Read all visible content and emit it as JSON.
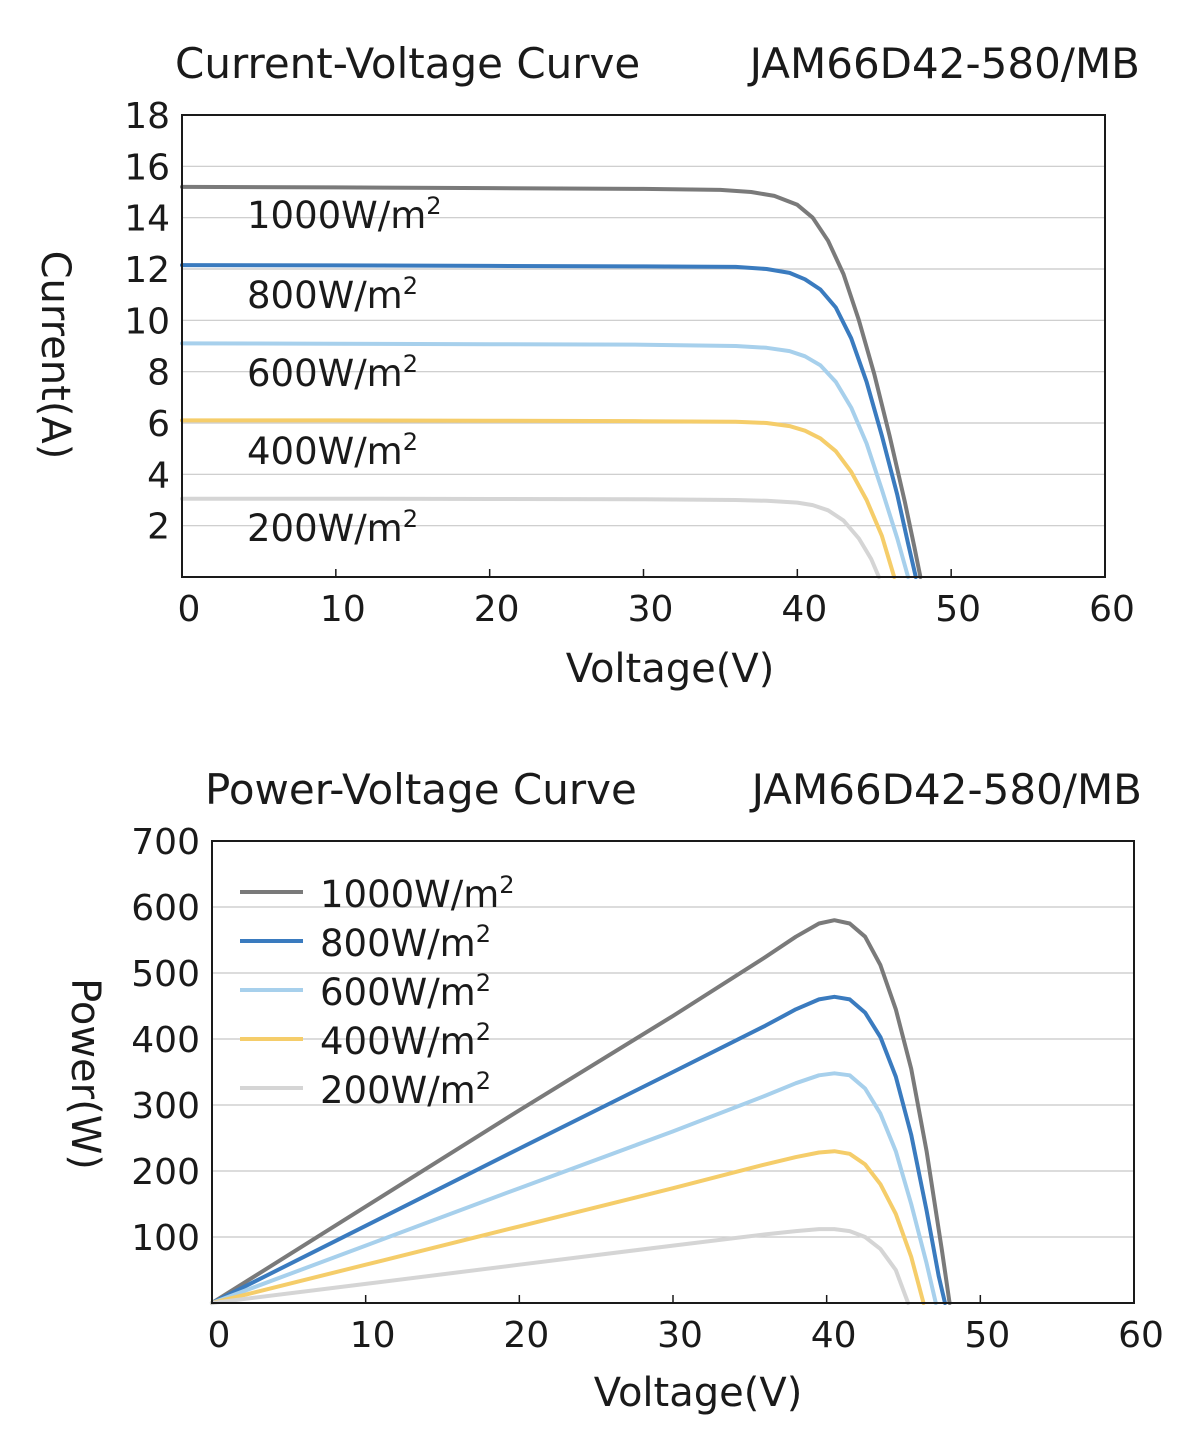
{
  "chart_data": [
    {
      "type": "line",
      "title": "Current-Voltage Curve",
      "model": "JAM66D42-580/MB",
      "xlabel": "Voltage(V)",
      "ylabel": "Current(A)",
      "xlim": [
        0,
        60
      ],
      "ylim": [
        0,
        18
      ],
      "x_ticks": [
        "0",
        "10",
        "20",
        "30",
        "40",
        "50",
        "60"
      ],
      "y_ticks": [
        "2",
        "4",
        "6",
        "8",
        "10",
        "12",
        "14",
        "16",
        "18"
      ],
      "grid": true,
      "legend": "inline-left",
      "series": [
        {
          "name": "1000W/m²",
          "label": "1000W/m",
          "sup": "2",
          "color": "#7a7a7a",
          "points": [
            [
              0,
              15.2
            ],
            [
              10,
              15.18
            ],
            [
              20,
              15.15
            ],
            [
              30,
              15.12
            ],
            [
              35,
              15.08
            ],
            [
              37,
              15.0
            ],
            [
              38.5,
              14.85
            ],
            [
              40,
              14.5
            ],
            [
              41,
              14.0
            ],
            [
              42,
              13.1
            ],
            [
              43,
              11.8
            ],
            [
              44,
              10.0
            ],
            [
              45,
              7.9
            ],
            [
              46,
              5.5
            ],
            [
              47,
              2.9
            ],
            [
              47.6,
              1.2
            ],
            [
              48,
              0
            ]
          ]
        },
        {
          "name": "800W/m²",
          "label": "800W/m",
          "sup": "2",
          "color": "#3a7bbf",
          "points": [
            [
              0,
              12.15
            ],
            [
              10,
              12.14
            ],
            [
              20,
              12.12
            ],
            [
              30,
              12.1
            ],
            [
              36,
              12.08
            ],
            [
              38,
              12.0
            ],
            [
              39.5,
              11.85
            ],
            [
              40.5,
              11.6
            ],
            [
              41.5,
              11.2
            ],
            [
              42.5,
              10.5
            ],
            [
              43.5,
              9.3
            ],
            [
              44.5,
              7.6
            ],
            [
              45.5,
              5.5
            ],
            [
              46.5,
              3.2
            ],
            [
              47.2,
              1.3
            ],
            [
              47.7,
              0
            ]
          ]
        },
        {
          "name": "600W/m²",
          "label": "600W/m",
          "sup": "2",
          "color": "#a7d0ec",
          "points": [
            [
              0,
              9.1
            ],
            [
              10,
              9.09
            ],
            [
              20,
              9.07
            ],
            [
              30,
              9.05
            ],
            [
              36,
              9.0
            ],
            [
              38,
              8.93
            ],
            [
              39.5,
              8.8
            ],
            [
              40.5,
              8.6
            ],
            [
              41.5,
              8.25
            ],
            [
              42.5,
              7.6
            ],
            [
              43.5,
              6.6
            ],
            [
              44.5,
              5.2
            ],
            [
              45.5,
              3.4
            ],
            [
              46.5,
              1.5
            ],
            [
              47.2,
              0
            ]
          ]
        },
        {
          "name": "400W/m²",
          "label": "400W/m",
          "sup": "2",
          "color": "#f5cd6a",
          "points": [
            [
              0,
              6.1
            ],
            [
              10,
              6.1
            ],
            [
              20,
              6.09
            ],
            [
              30,
              6.07
            ],
            [
              36,
              6.05
            ],
            [
              38,
              6.0
            ],
            [
              39.5,
              5.88
            ],
            [
              40.5,
              5.7
            ],
            [
              41.5,
              5.4
            ],
            [
              42.5,
              4.9
            ],
            [
              43.5,
              4.1
            ],
            [
              44.5,
              3.0
            ],
            [
              45.5,
              1.6
            ],
            [
              46.3,
              0
            ]
          ]
        },
        {
          "name": "200W/m²",
          "label": "200W/m",
          "sup": "2",
          "color": "#d5d5d5",
          "points": [
            [
              0,
              3.05
            ],
            [
              10,
              3.05
            ],
            [
              20,
              3.04
            ],
            [
              30,
              3.03
            ],
            [
              36,
              3.0
            ],
            [
              38,
              2.97
            ],
            [
              40,
              2.9
            ],
            [
              41,
              2.8
            ],
            [
              42,
              2.6
            ],
            [
              43,
              2.2
            ],
            [
              44,
              1.5
            ],
            [
              44.8,
              0.7
            ],
            [
              45.3,
              0
            ]
          ]
        }
      ]
    },
    {
      "type": "line",
      "title": "Power-Voltage Curve",
      "model": "JAM66D42-580/MB",
      "xlabel": "Voltage(V)",
      "ylabel": "Power(W)",
      "xlim": [
        0,
        60
      ],
      "ylim": [
        0,
        700
      ],
      "x_ticks": [
        "0",
        "10",
        "20",
        "30",
        "40",
        "50",
        "60"
      ],
      "y_ticks": [
        "100",
        "200",
        "300",
        "400",
        "500",
        "600",
        "700"
      ],
      "grid": true,
      "legend": "top-left",
      "series": [
        {
          "name": "1000W/m²",
          "label": "1000W/m",
          "sup": "2",
          "color": "#7a7a7a",
          "points": [
            [
              0,
              0
            ],
            [
              10,
              146
            ],
            [
              20,
              292
            ],
            [
              30,
              435
            ],
            [
              36,
              524
            ],
            [
              38,
              555
            ],
            [
              39.5,
              575
            ],
            [
              40.5,
              580
            ],
            [
              41.5,
              575
            ],
            [
              42.5,
              555
            ],
            [
              43.5,
              512
            ],
            [
              44.5,
              445
            ],
            [
              45.5,
              355
            ],
            [
              46.5,
              230
            ],
            [
              47.5,
              80
            ],
            [
              48,
              0
            ]
          ]
        },
        {
          "name": "800W/m²",
          "label": "800W/m",
          "sup": "2",
          "color": "#3a7bbf",
          "points": [
            [
              0,
              0
            ],
            [
              10,
              117
            ],
            [
              20,
              234
            ],
            [
              30,
              350
            ],
            [
              36,
              420
            ],
            [
              38,
              445
            ],
            [
              39.5,
              460
            ],
            [
              40.5,
              464
            ],
            [
              41.5,
              460
            ],
            [
              42.5,
              440
            ],
            [
              43.5,
              403
            ],
            [
              44.5,
              343
            ],
            [
              45.5,
              255
            ],
            [
              46.5,
              140
            ],
            [
              47.3,
              40
            ],
            [
              47.7,
              0
            ]
          ]
        },
        {
          "name": "600W/m²",
          "label": "600W/m",
          "sup": "2",
          "color": "#a7d0ec",
          "points": [
            [
              0,
              0
            ],
            [
              10,
              87
            ],
            [
              20,
              174
            ],
            [
              30,
              260
            ],
            [
              36,
              314
            ],
            [
              38,
              333
            ],
            [
              39.5,
              345
            ],
            [
              40.5,
              348
            ],
            [
              41.5,
              345
            ],
            [
              42.5,
              325
            ],
            [
              43.5,
              287
            ],
            [
              44.5,
              230
            ],
            [
              45.5,
              150
            ],
            [
              46.5,
              60
            ],
            [
              47.1,
              0
            ]
          ]
        },
        {
          "name": "400W/m²",
          "label": "400W/m",
          "sup": "2",
          "color": "#f5cd6a",
          "points": [
            [
              0,
              0
            ],
            [
              10,
              58
            ],
            [
              20,
              116
            ],
            [
              30,
              174
            ],
            [
              36,
              210
            ],
            [
              38,
              221
            ],
            [
              39.5,
              228
            ],
            [
              40.5,
              230
            ],
            [
              41.5,
              226
            ],
            [
              42.5,
              210
            ],
            [
              43.5,
              180
            ],
            [
              44.5,
              135
            ],
            [
              45.5,
              70
            ],
            [
              46.3,
              0
            ]
          ]
        },
        {
          "name": "200W/m²",
          "label": "200W/m",
          "sup": "2",
          "color": "#d5d5d5",
          "points": [
            [
              0,
              0
            ],
            [
              10,
              29
            ],
            [
              20,
              58
            ],
            [
              30,
              87
            ],
            [
              36,
              104
            ],
            [
              38,
              109
            ],
            [
              39.5,
              112
            ],
            [
              40.5,
              112
            ],
            [
              41.5,
              109
            ],
            [
              42.5,
              100
            ],
            [
              43.5,
              82
            ],
            [
              44.5,
              50
            ],
            [
              45.3,
              0
            ]
          ]
        }
      ]
    }
  ]
}
